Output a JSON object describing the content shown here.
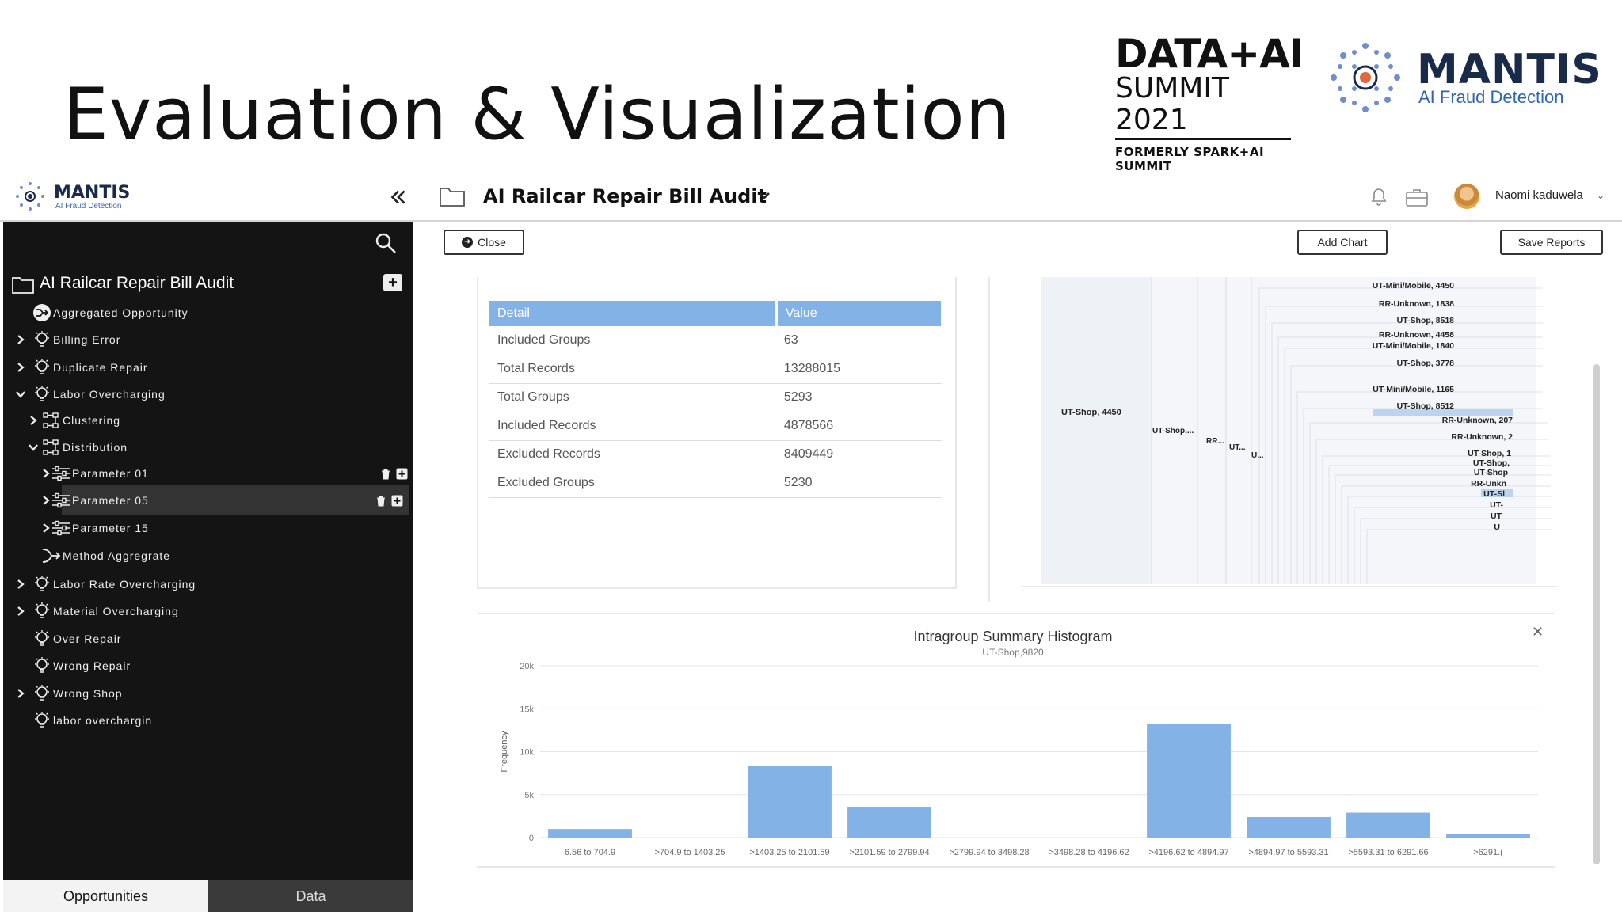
{
  "slide": {
    "title": "Evaluation & Visualization",
    "summit_logo": {
      "line1": "DATA+AI",
      "line2": "SUMMIT 2021",
      "line3": "FORMERLY SPARK+AI SUMMIT"
    },
    "mantis_logo": {
      "name": "MANTIS",
      "tagline": "AI Fraud Detection"
    }
  },
  "app": {
    "brand": {
      "name": "MANTIS",
      "tagline": "AI Fraud Detection"
    },
    "project_title": "AI Railcar Repair Bill Audit",
    "user": {
      "name": "Naomi kaduwela"
    },
    "icons": [
      "collapse-icon",
      "folder-icon",
      "chevron-down-icon",
      "bell-icon",
      "briefcase-icon"
    ]
  },
  "sidebar": {
    "title": "AI Railcar Repair Bill Audit",
    "items": [
      {
        "label": "Aggregated Opportunity",
        "level": 0,
        "expand": "none",
        "icon": "merge-icon"
      },
      {
        "label": "Billing Error",
        "level": 0,
        "expand": "collapsed",
        "icon": "bulb-icon"
      },
      {
        "label": "Duplicate Repair",
        "level": 0,
        "expand": "collapsed",
        "icon": "bulb-icon"
      },
      {
        "label": "Labor Overcharging",
        "level": 0,
        "expand": "expanded",
        "icon": "bulb-icon"
      },
      {
        "label": "Clustering",
        "level": 1,
        "expand": "collapsed",
        "icon": "hierarchy-icon"
      },
      {
        "label": "Distribution",
        "level": 1,
        "expand": "expanded",
        "icon": "hierarchy-icon"
      },
      {
        "label": "Parameter 01",
        "level": 2,
        "expand": "collapsed",
        "icon": "sliders-icon",
        "actions": true
      },
      {
        "label": "Parameter 05",
        "level": 2,
        "expand": "collapsed",
        "icon": "sliders-icon",
        "actions": true,
        "selected": true
      },
      {
        "label": "Parameter 15",
        "level": 2,
        "expand": "collapsed",
        "icon": "sliders-icon"
      },
      {
        "label": "Method Aggregrate",
        "level": 1,
        "expand": "none",
        "icon": "merge-arrow-icon"
      },
      {
        "label": "Labor Rate Overcharging",
        "level": 0,
        "expand": "collapsed",
        "icon": "bulb-icon"
      },
      {
        "label": "Material Overcharging",
        "level": 0,
        "expand": "collapsed",
        "icon": "bulb-icon"
      },
      {
        "label": "Over Repair",
        "level": 0,
        "expand": "none",
        "icon": "bulb-icon"
      },
      {
        "label": "Wrong Repair",
        "level": 0,
        "expand": "none",
        "icon": "bulb-icon"
      },
      {
        "label": "Wrong Shop",
        "level": 0,
        "expand": "collapsed",
        "icon": "bulb-icon"
      },
      {
        "label": "labor overchargin",
        "level": 0,
        "expand": "none",
        "icon": "bulb-icon"
      }
    ],
    "tabs": [
      {
        "label": "Opportunities",
        "active": true
      },
      {
        "label": "Data",
        "active": false
      }
    ]
  },
  "toolbar": {
    "close_label": "Close",
    "add_chart_label": "Add Chart",
    "save_reports_label": "Save Reports"
  },
  "summary_table": {
    "headers": [
      "Detail",
      "Value"
    ],
    "rows": [
      [
        "Included Groups",
        "63"
      ],
      [
        "Total Records",
        "13288015"
      ],
      [
        "Total Groups",
        "5293"
      ],
      [
        "Included Records",
        "4878566"
      ],
      [
        "Excluded Records",
        "8409449"
      ],
      [
        "Excluded Groups",
        "5230"
      ]
    ]
  },
  "tree_chart": {
    "root_label": "UT-Shop, 4450",
    "branch_labels": [
      "UT-Shop,...",
      "RR...",
      "UT...",
      "U..."
    ],
    "leaf_labels": [
      "UT-Mini/Mobile, 4450",
      "RR-Unknown, 1838",
      "UT-Shop, 8518",
      "RR-Unknown, 4458",
      "UT-Mini/Mobile, 1840",
      "UT-Shop, 3778",
      "UT-Mini/Mobile, 1165",
      "UT-Shop, 8512",
      "RR-Unknown, 207",
      "RR-Unknown, 2",
      "UT-Shop, 1",
      "UT-Shop,",
      "UT-Shop",
      "RR-Unkn",
      "UT-Sl",
      "UT-",
      "UT",
      "U"
    ],
    "highlight_color": "#bcd4f0"
  },
  "chart_data": {
    "type": "bar",
    "title": "Intragroup Summary Histogram",
    "subtitle": "UT-Shop,9820",
    "xlabel": "",
    "ylabel": "Frequency",
    "ylim": [
      0,
      20000
    ],
    "yticks": [
      0,
      5000,
      10000,
      15000,
      20000
    ],
    "ytick_labels": [
      "0",
      "5k",
      "10k",
      "15k",
      "20k"
    ],
    "categories": [
      "6.56 to 704.9",
      ">704.9 to 1403.25",
      ">1403.25 to 2101.59",
      ">2101.59 to 2799.94",
      ">2799.94 to 3498.28",
      ">3498.28 to 4196.62",
      ">4196.62 to 4894.97",
      ">4894.97 to 5593.31",
      ">5593.31 to 6291.66",
      ">6291.("
    ],
    "values": [
      1000,
      0,
      8300,
      3500,
      0,
      0,
      13200,
      2400,
      2900,
      400
    ],
    "bar_color": "#82b2e6",
    "grid": true
  }
}
